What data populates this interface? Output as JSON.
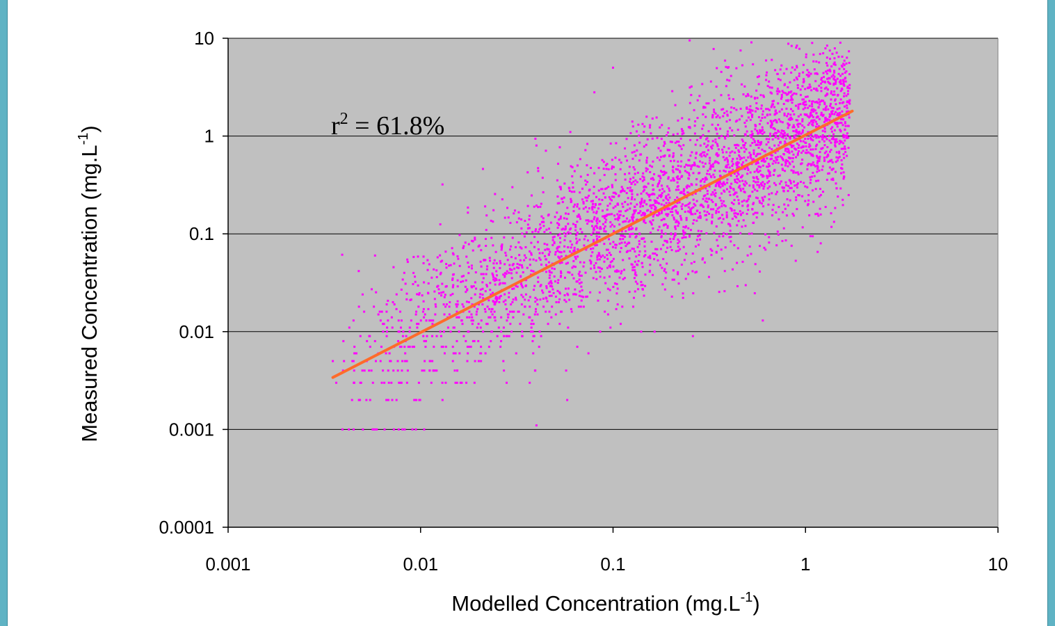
{
  "chart_data": {
    "type": "scatter",
    "xscale": "log",
    "yscale": "log",
    "xlim": [
      0.001,
      10
    ],
    "ylim": [
      0.0001,
      10
    ],
    "x_ticks": [
      "0.001",
      "0.01",
      "0.1",
      "1",
      "10"
    ],
    "y_ticks": [
      "0.0001",
      "0.001",
      "0.01",
      "0.1",
      "1",
      "10"
    ],
    "xlabel": {
      "main": "Modelled Concentration (mg.L",
      "sup": "-1",
      "close": ")"
    },
    "ylabel": {
      "main": "Measured Concentration (mg.L",
      "sup": "-1",
      "close": ")"
    },
    "annotation": {
      "base": "r",
      "sup": "2",
      "rest": " = 61.8%"
    },
    "grid": "horizontal",
    "plot_background": "#c0c0c0",
    "series": [
      {
        "marker": "square",
        "color": "#ff00ff",
        "approx_count": 3500,
        "x_range": [
          0.0035,
          1.7
        ],
        "y_range": [
          0.001,
          9.5
        ],
        "trend": "y ≈ x",
        "notable_points": [
          [
            0.0035,
            0.005
          ],
          [
            0.0045,
            0.003
          ],
          [
            0.005,
            0.024
          ],
          [
            0.0058,
            0.06
          ],
          [
            0.0065,
            0.001
          ],
          [
            0.0068,
            0.002
          ],
          [
            0.0075,
            0.002
          ],
          [
            0.0095,
            0.002
          ],
          [
            0.013,
            0.002
          ],
          [
            0.013,
            0.32
          ],
          [
            0.028,
            0.003
          ],
          [
            0.04,
            0.0011
          ],
          [
            0.04,
            0.8
          ],
          [
            0.06,
            1.1
          ],
          [
            0.08,
            2.8
          ],
          [
            0.1,
            5.0
          ],
          [
            0.14,
            0.01
          ],
          [
            0.25,
            9.5
          ],
          [
            0.26,
            0.009
          ],
          [
            0.46,
            7.5
          ],
          [
            0.6,
            0.013
          ],
          [
            0.9,
            5.2
          ],
          [
            1.1,
            5.8
          ],
          [
            1.2,
            0.08
          ],
          [
            1.3,
            1.3
          ],
          [
            1.6,
            0.9
          ],
          [
            0.03,
            0.3
          ],
          [
            0.012,
            0.018
          ],
          [
            0.02,
            0.012
          ],
          [
            0.004,
            0.005
          ]
        ]
      },
      {
        "type": "line",
        "color": "#ff6b2b",
        "points": [
          [
            0.0035,
            0.0034
          ],
          [
            1.75,
            1.8
          ]
        ]
      }
    ]
  }
}
